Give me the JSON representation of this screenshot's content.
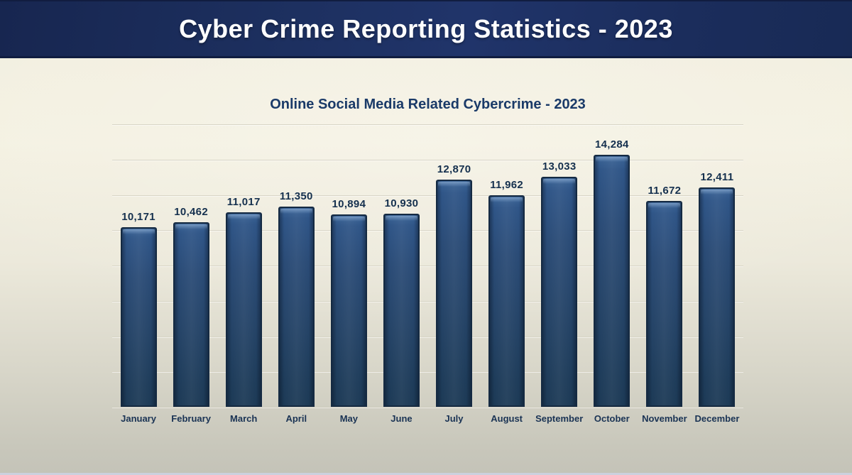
{
  "header": {
    "title": "Cyber Crime Reporting Statistics - 2023",
    "background_color": "#1d3060",
    "text_color": "#ffffff"
  },
  "chart_data": {
    "type": "bar",
    "title": "Online Social Media Related Cybercrime - 2023",
    "categories": [
      "January",
      "February",
      "March",
      "April",
      "May",
      "June",
      "July",
      "August",
      "September",
      "October",
      "November",
      "December"
    ],
    "values": [
      10171,
      10462,
      11017,
      11350,
      10894,
      10930,
      12870,
      11962,
      13033,
      14284,
      11672,
      12411
    ],
    "value_labels": [
      "10,171",
      "10,462",
      "11,017",
      "11,350",
      "10,894",
      "10,930",
      "12,870",
      "11,962",
      "13,033",
      "14,284",
      "11,672",
      "12,411"
    ],
    "xlabel": "",
    "ylabel": "",
    "ylim": [
      0,
      16000
    ],
    "gridline_step": 2000,
    "grid": true,
    "legend": false,
    "data_labels": true,
    "bar_color": "#254468",
    "bar_border_color": "#152a42",
    "label_color": "#15304e",
    "gridline_color": "#d8d5c6",
    "plot_background": "#f2efe0",
    "title_color": "#1a3a68"
  }
}
